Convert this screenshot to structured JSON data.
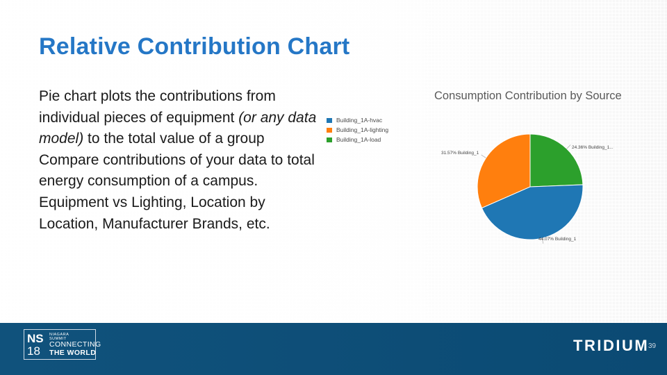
{
  "slide": {
    "title": "Relative Contribution Chart",
    "body": {
      "line1": "Pie chart plots the contributions from individual pieces of equipment ",
      "line1_italic": "(or any data model)",
      "line1_end": " to the total value of a group",
      "line2": "Compare contributions of your data to total energy consumption of a campus.",
      "line3": "Equipment vs Lighting,  Location by Location, Manufacturer Brands, etc."
    },
    "page_number": "39"
  },
  "footer": {
    "logo": {
      "ns": "NS",
      "year": "18",
      "small1": "NIAGARA",
      "small2": "SUMMIT",
      "big1": "CONNECTING",
      "big2": "THE WORLD"
    },
    "brand": "TRIDIUM"
  },
  "chart_data": {
    "type": "pie",
    "title": "Consumption Contribution by Source",
    "legend_position": "left",
    "slices": [
      {
        "name": "Building_1A-hvac",
        "value": 44.07,
        "label": "44.07% Building_1",
        "color": "#1f77b4"
      },
      {
        "name": "Building_1A-lighting",
        "value": 31.57,
        "label": "31.57% Building_1",
        "color": "#ff7f0e"
      },
      {
        "name": "Building_1A-load",
        "value": 24.36,
        "label": "24.36% Building_1...",
        "color": "#2ca02c"
      }
    ]
  },
  "colors": {
    "title": "#2577c6",
    "footer": "#0e4f78"
  }
}
